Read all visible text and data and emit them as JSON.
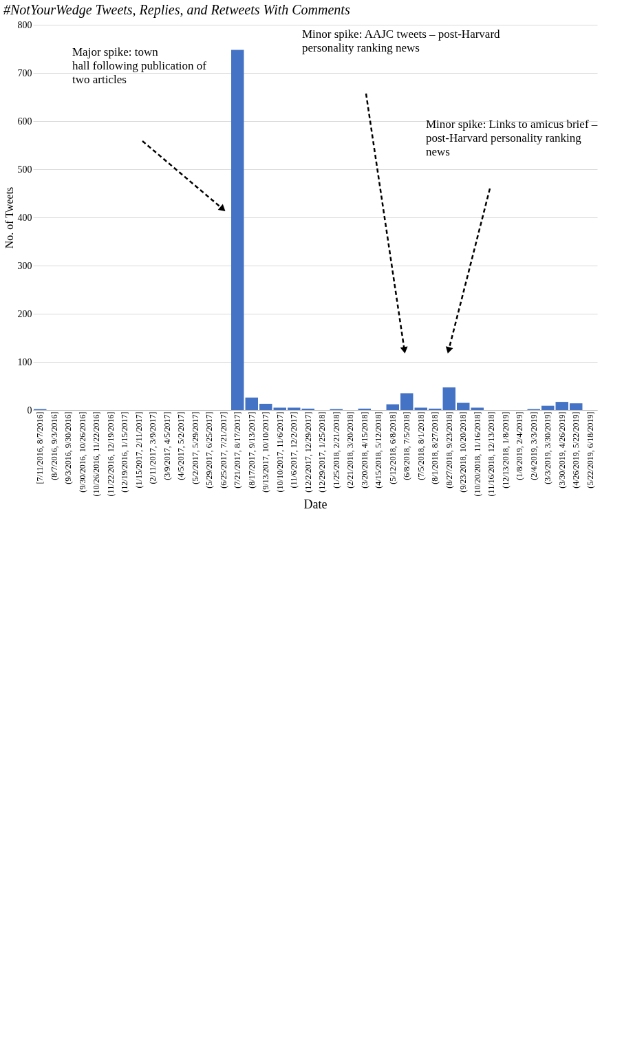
{
  "chart_data": {
    "type": "bar",
    "title": "#NotYourWedge Tweets, Replies, and Retweets With Comments",
    "xlabel": "Date",
    "ylabel": "No. of Tweets",
    "categories": [
      "[7/11/2016, 8/7/2016]",
      "(8/7/2016, 9/3/2016]",
      "(9/3/2016, 9/30/2016]",
      "(9/30/2016, 10/26/2016]",
      "(10/26/2016, 11/22/2016]",
      "(11/22/2016, 12/19/2016]",
      "(12/19/2016, 1/15/2017]",
      "(1/15/2017, 2/11/2017]",
      "(2/11/2017, 3/9/2017]",
      "(3/9/2017, 4/5/2017]",
      "(4/5/2017, 5/2/2017]",
      "(5/2/2017, 5/29/2017]",
      "(5/29/2017, 6/25/2017]",
      "(6/25/2017, 7/21/2017]",
      "(7/21/2017, 8/17/2017]",
      "(8/17/2017, 9/13/2017]",
      "(9/13/2017, 10/10/2017]",
      "(10/10/2017, 11/6/2017]",
      "(11/6/2017, 12/2/2017]",
      "(12/2/2017, 12/29/2017]",
      "(12/29/2017, 1/25/2018]",
      "(1/25/2018, 2/21/2018]",
      "(2/21/2018, 3/20/2018]",
      "(3/20/2018, 4/15/2018]",
      "(4/15/2018, 5/12/2018]",
      "(5/12/2018, 6/8/2018]",
      "(6/8/2018, 7/5/2018]",
      "(7/5/2018, 8/1/2018]",
      "(8/1/2018, 8/27/2018]",
      "(8/27/2018, 9/23/2018]",
      "(9/23/2018, 10/20/2018]",
      "(10/20/2018, 11/16/2018]",
      "(11/16/2018, 12/13/2018]",
      "(12/13/2018, 1/8/2019]",
      "(1/8/2019, 2/4/2019]",
      "(2/4/2019, 3/3/2019]",
      "(3/3/2019, 3/30/2019]",
      "(3/30/2019, 4/26/2019]",
      "(4/26/2019, 5/22/2019]",
      "(5/22/2019, 6/18/2019]"
    ],
    "values": [
      2,
      0,
      0,
      0,
      0,
      0,
      0,
      0,
      0,
      0,
      0,
      0,
      0,
      0,
      748,
      26,
      13,
      5,
      5,
      3,
      0,
      2,
      0,
      3,
      0,
      12,
      35,
      5,
      3,
      47,
      15,
      5,
      0,
      0,
      0,
      2,
      9,
      17,
      14,
      0
    ],
    "color": "#4472c4",
    "ylim": [
      0,
      800
    ],
    "yticks": [
      0,
      100,
      200,
      300,
      400,
      500,
      600,
      700,
      800
    ],
    "grid": "y",
    "annotations": [
      "Major spike: town\nhall following publication of\ntwo articles",
      "Minor spike: AAJC tweets – post-Harvard\npersonality ranking news",
      "Minor spike: Links to amicus brief –\npost-Harvard personality ranking\nnews"
    ]
  }
}
